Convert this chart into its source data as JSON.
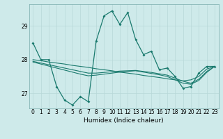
{
  "xlabel": "Humidex (Indice chaleur)",
  "ylabel": "",
  "background_color": "#ceeaea",
  "line_color": "#1a7a6e",
  "grid_color": "#b8d8d8",
  "ylim": [
    26.55,
    29.65
  ],
  "yticks": [
    27,
    28,
    29
  ],
  "xlim": [
    -0.5,
    23.5
  ],
  "series_main": [
    28.5,
    28.0,
    28.0,
    27.2,
    26.8,
    26.65,
    26.9,
    26.75,
    28.55,
    29.3,
    29.45,
    29.05,
    29.4,
    28.6,
    28.15,
    28.25,
    27.7,
    27.75,
    27.5,
    27.15,
    27.2,
    27.6,
    27.8,
    27.8
  ],
  "series_flat1": [
    28.0,
    27.97,
    27.93,
    27.9,
    27.87,
    27.83,
    27.8,
    27.77,
    27.73,
    27.7,
    27.67,
    27.63,
    27.6,
    27.57,
    27.53,
    27.5,
    27.47,
    27.43,
    27.4,
    27.37,
    27.4,
    27.5,
    27.72,
    27.8
  ],
  "series_flat2": [
    27.95,
    27.9,
    27.85,
    27.8,
    27.75,
    27.7,
    27.65,
    27.6,
    27.6,
    27.62,
    27.64,
    27.66,
    27.67,
    27.68,
    27.65,
    27.62,
    27.58,
    27.54,
    27.45,
    27.36,
    27.3,
    27.42,
    27.65,
    27.8
  ],
  "series_flat3": [
    27.93,
    27.87,
    27.81,
    27.75,
    27.69,
    27.63,
    27.57,
    27.52,
    27.54,
    27.57,
    27.6,
    27.63,
    27.65,
    27.67,
    27.63,
    27.59,
    27.55,
    27.5,
    27.4,
    27.3,
    27.27,
    27.38,
    27.62,
    27.8
  ]
}
